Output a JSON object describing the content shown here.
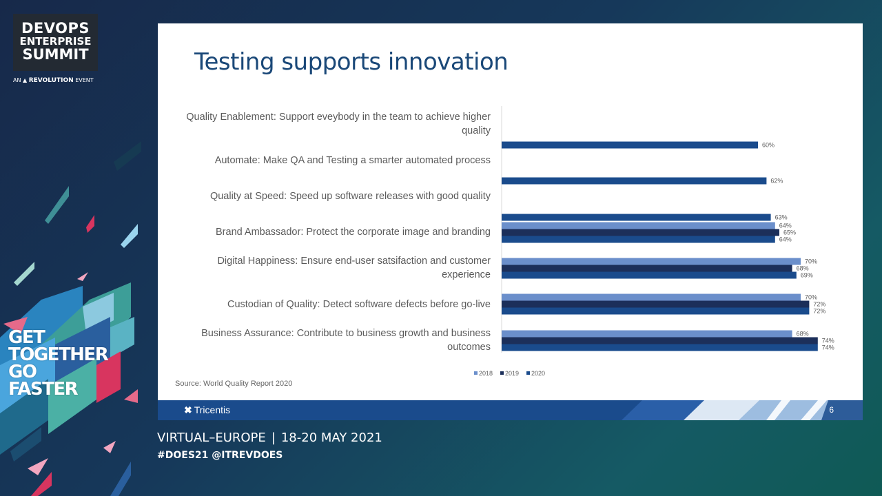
{
  "branding": {
    "logo_line1": "DEVOPS",
    "logo_line2": "ENTERPRISE",
    "logo_line3": "SUMMIT",
    "sub_prefix": "AN",
    "sub_brand": "REVOLUTION",
    "sub_suffix": "EVENT",
    "tagline": [
      "GET",
      "TOGETHER",
      "GO",
      "FASTER"
    ],
    "event": "VIRTUAL–EUROPE",
    "dates": "18-20 MAY 2021",
    "hashtags": "#DOES21 @ITREVDOES"
  },
  "slide": {
    "title": "Testing supports innovation",
    "source": "Source: World Quality Report 2020",
    "footer_brand": "Tricentis",
    "page_number": "6"
  },
  "colors": {
    "c2018": "#6b8fcb",
    "c2019": "#1c2f5a",
    "c2020": "#1a4b8c",
    "title": "#1a4878"
  },
  "chart_data": {
    "type": "bar",
    "orientation": "horizontal",
    "categories": [
      "Quality Enablement: Support eveybody in the team to achieve higher quality",
      "Automate: Make QA and Testing a smarter automated process",
      "Quality at Speed: Speed up software releases with good quality",
      "Brand Ambassador: Protect the corporate image and branding",
      "Digital Happiness: Ensure end-user satsifaction and customer experience",
      "Custodian of Quality: Detect software defects before go-live",
      "Business Assurance: Contribute to business growth and business outcomes"
    ],
    "series": [
      {
        "name": "2018",
        "values": [
          null,
          null,
          null,
          64,
          70,
          70,
          68
        ]
      },
      {
        "name": "2019",
        "values": [
          null,
          null,
          null,
          65,
          68,
          72,
          74
        ]
      },
      {
        "name": "2020",
        "values": [
          60,
          62,
          63,
          64,
          69,
          72,
          74
        ]
      }
    ],
    "value_suffix": "%",
    "xlim": [
      0,
      80
    ],
    "legend_position": "bottom",
    "grid": false
  }
}
